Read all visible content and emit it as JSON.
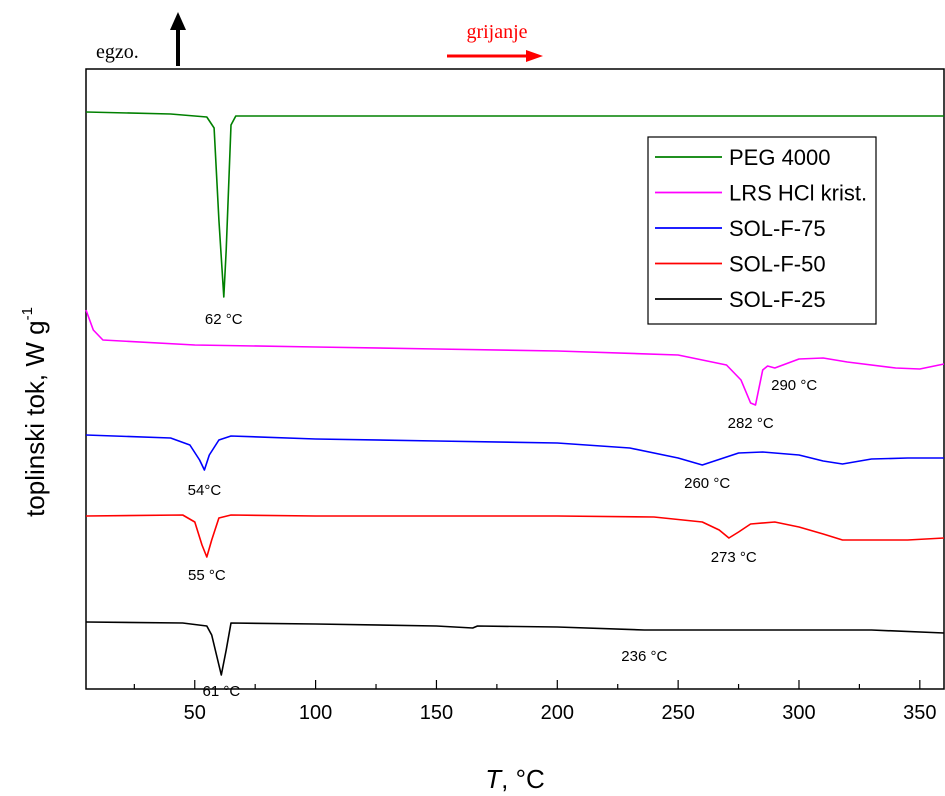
{
  "chart_data": {
    "type": "line",
    "xlabel_italic": "T",
    "xlabel_unit": ", °C",
    "ylabel": "toplinski tok, W g",
    "ylabel_sup": "-1",
    "xlim": [
      5,
      360
    ],
    "x_ticks": [
      50,
      100,
      150,
      200,
      250,
      300,
      350
    ],
    "grid": false,
    "legend_position": "top-right",
    "exo_label": "egzo.",
    "heating_label": "grijanje",
    "colors": {
      "heating": "#ff0000",
      "axis": "#000000"
    },
    "series": [
      {
        "name": "PEG 4000",
        "color": "#008000",
        "points": [
          [
            5,
            112
          ],
          [
            40,
            114
          ],
          [
            55,
            117
          ],
          [
            58,
            128
          ],
          [
            60,
            220
          ],
          [
            62,
            297
          ],
          [
            63,
            250
          ],
          [
            65,
            125
          ],
          [
            67,
            116
          ],
          [
            100,
            116
          ],
          [
            200,
            116
          ],
          [
            300,
            116
          ],
          [
            360,
            116
          ]
        ]
      },
      {
        "name": "LRS HCl krist.",
        "color": "#ff00ff",
        "points": [
          [
            5,
            310
          ],
          [
            8,
            330
          ],
          [
            12,
            340
          ],
          [
            50,
            345
          ],
          [
            100,
            347
          ],
          [
            150,
            349
          ],
          [
            200,
            351
          ],
          [
            250,
            355
          ],
          [
            270,
            365
          ],
          [
            276,
            380
          ],
          [
            280,
            403
          ],
          [
            282,
            405
          ],
          [
            285,
            370
          ],
          [
            287,
            366
          ],
          [
            290,
            368
          ],
          [
            300,
            359
          ],
          [
            310,
            358
          ],
          [
            320,
            362
          ],
          [
            340,
            368
          ],
          [
            350,
            369
          ],
          [
            360,
            364
          ]
        ]
      },
      {
        "name": "SOL-F-75",
        "color": "#0000ff",
        "points": [
          [
            5,
            435
          ],
          [
            40,
            438
          ],
          [
            48,
            445
          ],
          [
            52,
            460
          ],
          [
            54,
            470
          ],
          [
            56,
            455
          ],
          [
            60,
            440
          ],
          [
            65,
            436
          ],
          [
            100,
            439
          ],
          [
            150,
            441
          ],
          [
            200,
            443
          ],
          [
            230,
            448
          ],
          [
            250,
            458
          ],
          [
            260,
            465
          ],
          [
            265,
            461
          ],
          [
            275,
            453
          ],
          [
            285,
            452
          ],
          [
            300,
            455
          ],
          [
            310,
            461
          ],
          [
            318,
            464
          ],
          [
            330,
            459
          ],
          [
            345,
            458
          ],
          [
            360,
            458
          ]
        ]
      },
      {
        "name": "SOL-F-50",
        "color": "#ff0000",
        "points": [
          [
            5,
            516
          ],
          [
            45,
            515
          ],
          [
            50,
            522
          ],
          [
            53,
            545
          ],
          [
            55,
            557
          ],
          [
            57,
            540
          ],
          [
            60,
            518
          ],
          [
            65,
            515
          ],
          [
            100,
            516
          ],
          [
            150,
            516
          ],
          [
            200,
            516
          ],
          [
            240,
            517
          ],
          [
            260,
            522
          ],
          [
            267,
            530
          ],
          [
            271,
            538
          ],
          [
            275,
            532
          ],
          [
            280,
            524
          ],
          [
            290,
            522
          ],
          [
            300,
            527
          ],
          [
            310,
            534
          ],
          [
            318,
            540
          ],
          [
            330,
            540
          ],
          [
            345,
            540
          ],
          [
            360,
            538
          ]
        ]
      },
      {
        "name": "SOL-F-25",
        "color": "#000000",
        "points": [
          [
            5,
            622
          ],
          [
            45,
            623
          ],
          [
            55,
            626
          ],
          [
            57,
            635
          ],
          [
            59,
            655
          ],
          [
            61,
            675
          ],
          [
            63,
            650
          ],
          [
            65,
            623
          ],
          [
            100,
            624
          ],
          [
            150,
            626
          ],
          [
            165,
            628
          ],
          [
            167,
            626
          ],
          [
            200,
            627
          ],
          [
            236,
            630
          ],
          [
            260,
            630
          ],
          [
            300,
            630
          ],
          [
            330,
            630
          ],
          [
            360,
            633
          ]
        ]
      }
    ],
    "annotations": [
      {
        "text": "62 °C",
        "x": 62
      },
      {
        "text": "290 °C",
        "x": 298
      },
      {
        "text": "282 °C",
        "x": 280
      },
      {
        "text": "54°C",
        "x": 54
      },
      {
        "text": "260 °C",
        "x": 262
      },
      {
        "text": "55 °C",
        "x": 55
      },
      {
        "text": "273 °C",
        "x": 273
      },
      {
        "text": "236 °C",
        "x": 236
      },
      {
        "text": "61 °C",
        "x": 61
      }
    ]
  }
}
